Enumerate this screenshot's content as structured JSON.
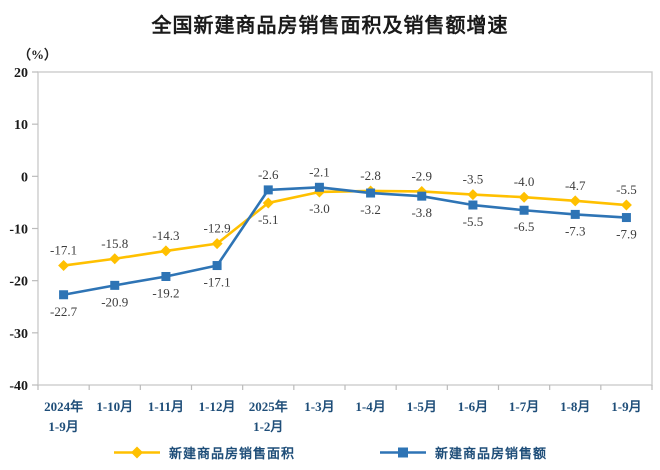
{
  "chart_data": {
    "type": "line",
    "title": "全国新建商品房销售面积及销售额增速",
    "unit_label": "（%）",
    "categories": [
      "2024年\n1-9月",
      "1-10月",
      "1-11月",
      "1-12月",
      "2025年\n1-2月",
      "1-3月",
      "1-4月",
      "1-5月",
      "1-6月",
      "1-7月",
      "1-8月",
      "1-9月"
    ],
    "ylim": [
      -40,
      20
    ],
    "yticks": [
      20,
      10,
      0,
      -10,
      -20,
      -30,
      -40
    ],
    "grid": false,
    "legend_position": "bottom",
    "series": [
      {
        "name": "新建商品房销售面积",
        "color": "#FFC000",
        "marker": "diamond",
        "values": [
          -17.1,
          -15.8,
          -14.3,
          -12.9,
          -5.1,
          -3.0,
          -2.8,
          -2.9,
          -3.5,
          -4.0,
          -4.7,
          -5.5
        ],
        "label_side": [
          "above",
          "above",
          "above",
          "above",
          "below",
          "below",
          "above",
          "above",
          "above",
          "above",
          "above",
          "above"
        ]
      },
      {
        "name": "新建商品房销售额",
        "color": "#2E74B5",
        "marker": "square",
        "values": [
          -22.7,
          -20.9,
          -19.2,
          -17.1,
          -2.6,
          -2.1,
          -3.2,
          -3.8,
          -5.5,
          -6.5,
          -7.3,
          -7.9
        ],
        "label_side": [
          "below",
          "below",
          "below",
          "below",
          "above",
          "above",
          "below",
          "below",
          "below",
          "below",
          "below",
          "below"
        ]
      }
    ],
    "colors": {
      "plot_border": "#cccccc",
      "tick": "#bbbbbb",
      "x_label": "#1f4e79",
      "y_label": "#1a1a1a",
      "data_label": "#3d3d3d",
      "title": "#1a1a1a"
    }
  }
}
